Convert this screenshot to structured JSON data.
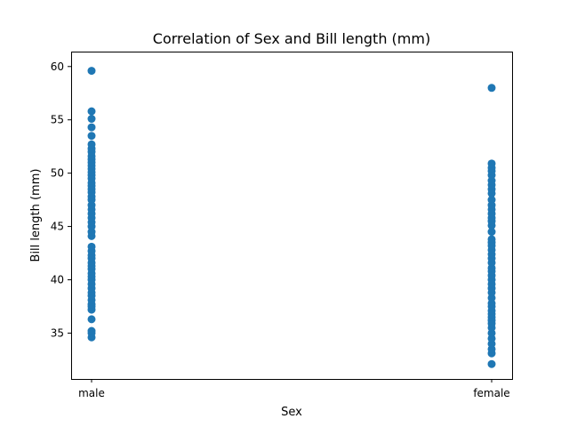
{
  "chart_data": {
    "type": "scatter",
    "title": "Correlation of Sex and Bill length (mm)",
    "xlabel": "Sex",
    "ylabel": "Bill length (mm)",
    "categories": [
      "male",
      "female"
    ],
    "yticks": [
      35,
      40,
      45,
      50,
      55,
      60
    ],
    "ylim": [
      30.7,
      61.4
    ],
    "grid": false,
    "marker_color": "#1f77b4",
    "series": [
      {
        "values": [
          [
            0,
            34.6
          ],
          [
            0,
            35.0
          ],
          [
            0,
            35.2
          ],
          [
            0,
            36.3
          ],
          [
            0,
            37.2
          ],
          [
            0,
            37.5
          ],
          [
            0,
            37.7
          ],
          [
            0,
            38.1
          ],
          [
            0,
            38.5
          ],
          [
            0,
            38.8
          ],
          [
            0,
            39.2
          ],
          [
            0,
            39.6
          ],
          [
            0,
            40.0
          ],
          [
            0,
            40.3
          ],
          [
            0,
            40.6
          ],
          [
            0,
            41.0
          ],
          [
            0,
            41.3
          ],
          [
            0,
            41.6
          ],
          [
            0,
            42.0
          ],
          [
            0,
            42.3
          ],
          [
            0,
            42.7
          ],
          [
            0,
            43.1
          ],
          [
            0,
            44.1
          ],
          [
            0,
            44.5
          ],
          [
            0,
            45.0
          ],
          [
            0,
            45.4
          ],
          [
            0,
            45.8
          ],
          [
            0,
            46.2
          ],
          [
            0,
            46.6
          ],
          [
            0,
            47.0
          ],
          [
            0,
            47.5
          ],
          [
            0,
            47.8
          ],
          [
            0,
            48.2
          ],
          [
            0,
            48.5
          ],
          [
            0,
            48.8
          ],
          [
            0,
            49.1
          ],
          [
            0,
            49.5
          ],
          [
            0,
            49.8
          ],
          [
            0,
            50.1
          ],
          [
            0,
            50.4
          ],
          [
            0,
            50.7
          ],
          [
            0,
            51.0
          ],
          [
            0,
            51.3
          ],
          [
            0,
            51.6
          ],
          [
            0,
            52.0
          ],
          [
            0,
            52.3
          ],
          [
            0,
            52.7
          ],
          [
            0,
            53.5
          ],
          [
            0,
            54.3
          ],
          [
            0,
            55.1
          ],
          [
            0,
            55.8
          ],
          [
            0,
            59.6
          ],
          [
            1,
            32.1
          ],
          [
            1,
            33.1
          ],
          [
            1,
            33.5
          ],
          [
            1,
            34.0
          ],
          [
            1,
            34.5
          ],
          [
            1,
            35.0
          ],
          [
            1,
            35.5
          ],
          [
            1,
            35.9
          ],
          [
            1,
            36.2
          ],
          [
            1,
            36.5
          ],
          [
            1,
            36.8
          ],
          [
            1,
            37.1
          ],
          [
            1,
            37.5
          ],
          [
            1,
            37.8
          ],
          [
            1,
            38.3
          ],
          [
            1,
            38.8
          ],
          [
            1,
            39.2
          ],
          [
            1,
            39.6
          ],
          [
            1,
            40.0
          ],
          [
            1,
            40.4
          ],
          [
            1,
            40.8
          ],
          [
            1,
            41.1
          ],
          [
            1,
            41.6
          ],
          [
            1,
            42.0
          ],
          [
            1,
            42.4
          ],
          [
            1,
            42.8
          ],
          [
            1,
            43.2
          ],
          [
            1,
            43.5
          ],
          [
            1,
            43.8
          ],
          [
            1,
            44.5
          ],
          [
            1,
            45.1
          ],
          [
            1,
            45.5
          ],
          [
            1,
            45.8
          ],
          [
            1,
            46.2
          ],
          [
            1,
            46.6
          ],
          [
            1,
            47.0
          ],
          [
            1,
            47.5
          ],
          [
            1,
            48.1
          ],
          [
            1,
            48.5
          ],
          [
            1,
            48.9
          ],
          [
            1,
            49.3
          ],
          [
            1,
            49.8
          ],
          [
            1,
            50.2
          ],
          [
            1,
            50.5
          ],
          [
            1,
            50.9
          ],
          [
            1,
            58.0
          ]
        ]
      }
    ]
  }
}
